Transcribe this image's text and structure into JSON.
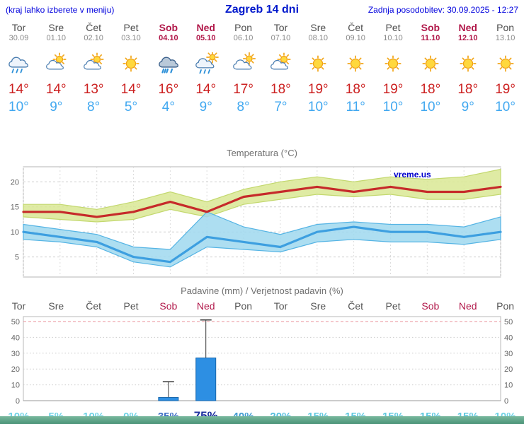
{
  "header": {
    "note": "(kraj lahko izberete v meniju)",
    "title": "Zagreb 14 dni",
    "updated": "Zadnja posodobitev: 30.09.2025 - 12:27"
  },
  "watermark": "vreme.us",
  "colors": {
    "header_blue": "#0018cc",
    "weekend_red": "#b1184a",
    "temp_max_red": "#cc2020",
    "temp_min_blue": "#41a8f0",
    "footer_teal": "#4b9378"
  },
  "days": [
    {
      "name": "Tor",
      "date": "30.09",
      "weekend": false,
      "icon": "rain",
      "tmax": "14°",
      "tmin": "10°"
    },
    {
      "name": "Sre",
      "date": "01.10",
      "weekend": false,
      "icon": "partly-cloudy",
      "tmax": "14°",
      "tmin": "9°"
    },
    {
      "name": "Čet",
      "date": "02.10",
      "weekend": false,
      "icon": "partly-cloudy",
      "tmax": "13°",
      "tmin": "8°"
    },
    {
      "name": "Pet",
      "date": "03.10",
      "weekend": false,
      "icon": "sunny",
      "tmax": "14°",
      "tmin": "5°"
    },
    {
      "name": "Sob",
      "date": "04.10",
      "weekend": true,
      "icon": "heavy-rain",
      "tmax": "16°",
      "tmin": "4°"
    },
    {
      "name": "Ned",
      "date": "05.10",
      "weekend": true,
      "icon": "showers",
      "tmax": "14°",
      "tmin": "9°"
    },
    {
      "name": "Pon",
      "date": "06.10",
      "weekend": false,
      "icon": "mostly-cloudy",
      "tmax": "17°",
      "tmin": "8°"
    },
    {
      "name": "Tor",
      "date": "07.10",
      "weekend": false,
      "icon": "partly-cloudy",
      "tmax": "18°",
      "tmin": "7°"
    },
    {
      "name": "Sre",
      "date": "08.10",
      "weekend": false,
      "icon": "sunny",
      "tmax": "19°",
      "tmin": "10°"
    },
    {
      "name": "Čet",
      "date": "09.10",
      "weekend": false,
      "icon": "sunny",
      "tmax": "18°",
      "tmin": "11°"
    },
    {
      "name": "Pet",
      "date": "10.10",
      "weekend": false,
      "icon": "sunny",
      "tmax": "19°",
      "tmin": "10°"
    },
    {
      "name": "Sob",
      "date": "11.10",
      "weekend": true,
      "icon": "sunny",
      "tmax": "18°",
      "tmin": "10°"
    },
    {
      "name": "Ned",
      "date": "12.10",
      "weekend": true,
      "icon": "sunny",
      "tmax": "18°",
      "tmin": "9°"
    },
    {
      "name": "Pon",
      "date": "13.10",
      "weekend": false,
      "icon": "sunny",
      "tmax": "19°",
      "tmin": "10°"
    }
  ],
  "chart_data": [
    {
      "type": "line",
      "title": "Temperatura (°C)",
      "categories": [
        "Tor",
        "Sre",
        "Čet",
        "Pet",
        "Sob",
        "Ned",
        "Pon",
        "Tor",
        "Sre",
        "Čet",
        "Pet",
        "Sob",
        "Ned",
        "Pon"
      ],
      "ylim": [
        1,
        23
      ],
      "yticks": [
        5,
        10,
        15,
        20
      ],
      "grid": true,
      "legend": "none",
      "series": [
        {
          "name": "max",
          "values": [
            14,
            14,
            13,
            14,
            16,
            14,
            17,
            18,
            19,
            18,
            19,
            18,
            18,
            19
          ],
          "color": "#c62a2a",
          "band_upper": [
            15.5,
            15.5,
            14.5,
            16,
            18,
            16,
            18.5,
            20,
            21,
            20,
            21,
            20.5,
            21,
            22.5
          ],
          "band_lower": [
            13,
            12.5,
            12,
            12.5,
            14.5,
            13,
            15.5,
            16.5,
            17.5,
            17,
            17.5,
            16.5,
            16.5,
            17.5
          ],
          "band_color": "#d9e894",
          "band_edge": "#c3d86e"
        },
        {
          "name": "min",
          "values": [
            10,
            9,
            8,
            5,
            4,
            9,
            8,
            7,
            10,
            11,
            10,
            10,
            9,
            10
          ],
          "color": "#3d9fe0",
          "band_upper": [
            11.5,
            10.5,
            9.5,
            7,
            6.5,
            14,
            11,
            9.5,
            11.5,
            12,
            11.5,
            11.5,
            11,
            13
          ],
          "band_lower": [
            8.5,
            8,
            7,
            4,
            3,
            7,
            6.5,
            6,
            8,
            8.5,
            8,
            8,
            7.5,
            8.5
          ],
          "band_color": "#9fd8ef",
          "band_edge": "#55b4e4"
        }
      ]
    },
    {
      "type": "bar",
      "title": "Padavine (mm) / Verjetnost padavin (%)",
      "categories": [
        "Tor",
        "Sre",
        "Čet",
        "Pet",
        "Sob",
        "Ned",
        "Pon",
        "Tor",
        "Sre",
        "Čet",
        "Pet",
        "Sob",
        "Ned",
        "Pon"
      ],
      "weekend_indices": [
        4,
        5,
        11,
        12
      ],
      "values": [
        0,
        0,
        0,
        0,
        2,
        27,
        0,
        0,
        0,
        0,
        0,
        0,
        0,
        0
      ],
      "whisker_max": [
        0,
        0,
        0,
        0,
        12,
        51,
        0,
        0,
        0,
        0,
        0,
        0,
        0,
        0
      ],
      "ylim": [
        0,
        52
      ],
      "yticks": [
        0,
        10,
        20,
        30,
        40,
        50
      ],
      "bar_color": "#2d8fe3",
      "bar_border": "#1767ad",
      "probabilities": [
        {
          "label": "10%",
          "color": "#6fd2e4"
        },
        {
          "label": "5%",
          "color": "#6fd2e4"
        },
        {
          "label": "10%",
          "color": "#6fd2e4"
        },
        {
          "label": "0%",
          "color": "#6fd2e4"
        },
        {
          "label": "35%",
          "color": "#3d6fc4"
        },
        {
          "label": "75%",
          "color": "#1b2f9e",
          "emph": true
        },
        {
          "label": "40%",
          "color": "#3e9ad0"
        },
        {
          "label": "20%",
          "color": "#55bedc"
        },
        {
          "label": "15%",
          "color": "#60c8de"
        },
        {
          "label": "15%",
          "color": "#60c8de"
        },
        {
          "label": "15%",
          "color": "#60c8de"
        },
        {
          "label": "15%",
          "color": "#60c8de"
        },
        {
          "label": "15%",
          "color": "#60c8de"
        },
        {
          "label": "10%",
          "color": "#6fd2e4"
        }
      ]
    }
  ]
}
